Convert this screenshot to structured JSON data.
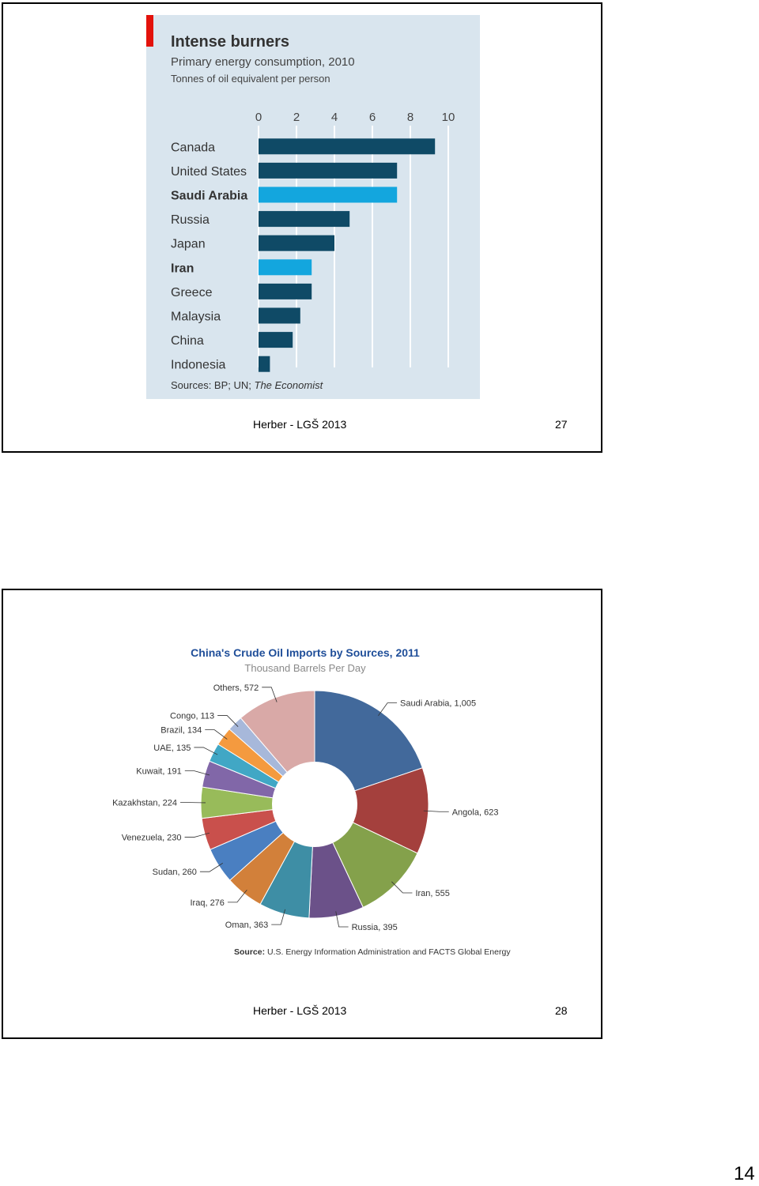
{
  "slides": [
    {
      "footer_author": "Herber - LGŠ 2013",
      "footer_number": "27"
    },
    {
      "footer_author": "Herber - LGŠ 2013",
      "footer_number": "28"
    }
  ],
  "page_number": "14",
  "colors": {
    "bar_dark": "#0f4a66",
    "bar_highlight": "#13a6de",
    "panel_bg": "#d9e5ee",
    "accent_red": "#e3120b",
    "pie_title": "#1f4e99"
  },
  "chart_data": [
    {
      "type": "bar",
      "orientation": "horizontal",
      "title": "Intense burners",
      "subtitle": "Primary energy consumption, 2010",
      "unit_label": "Tonnes of oil equivalent per person",
      "categories": [
        "Canada",
        "United States",
        "Saudi Arabia",
        "Russia",
        "Japan",
        "Iran",
        "Greece",
        "Malaysia",
        "China",
        "Indonesia"
      ],
      "values": [
        9.3,
        7.3,
        7.3,
        4.8,
        4.0,
        2.8,
        2.8,
        2.2,
        1.8,
        0.6
      ],
      "highlighted": [
        "Saudi Arabia",
        "Iran"
      ],
      "xlim": [
        0,
        10
      ],
      "ticks": [
        "0",
        "2",
        "4",
        "6",
        "8",
        "10"
      ],
      "source_label": "Sources: BP; UN;",
      "source_italic": "The Economist",
      "grid": true,
      "axis_position": "top"
    },
    {
      "type": "pie",
      "donut": true,
      "title": "China's Crude Oil Imports by Sources, 2011",
      "subtitle": "Thousand Barrels Per Day",
      "slices": [
        {
          "label": "Saudi Arabia, 1,005",
          "value": 1005,
          "color": "#42699b"
        },
        {
          "label": "Angola, 623",
          "value": 623,
          "color": "#a4403d"
        },
        {
          "label": "Iran, 555",
          "value": 555,
          "color": "#84a14b"
        },
        {
          "label": "Russia, 395",
          "value": 395,
          "color": "#6b5189"
        },
        {
          "label": "Oman, 363",
          "value": 363,
          "color": "#3e8ea5"
        },
        {
          "label": "Iraq, 276",
          "value": 276,
          "color": "#d2803a"
        },
        {
          "label": "Sudan, 260",
          "value": 260,
          "color": "#4a7fc1"
        },
        {
          "label": "Venezuela, 230",
          "value": 230,
          "color": "#c9504c"
        },
        {
          "label": "Kazakhstan, 224",
          "value": 224,
          "color": "#98bb5a"
        },
        {
          "label": "Kuwait, 191",
          "value": 191,
          "color": "#8167a8"
        },
        {
          "label": "UAE, 135",
          "value": 135,
          "color": "#41a7c5"
        },
        {
          "label": "Brazil, 134",
          "value": 134,
          "color": "#f49a3f"
        },
        {
          "label": "Congo, 113",
          "value": 113,
          "color": "#a7b8da"
        },
        {
          "label": "Others, 572",
          "value": 572,
          "color": "#d9a9a7"
        }
      ],
      "source_label": "Source:",
      "source_text": "U.S. Energy Information Administration and FACTS Global Energy"
    }
  ]
}
